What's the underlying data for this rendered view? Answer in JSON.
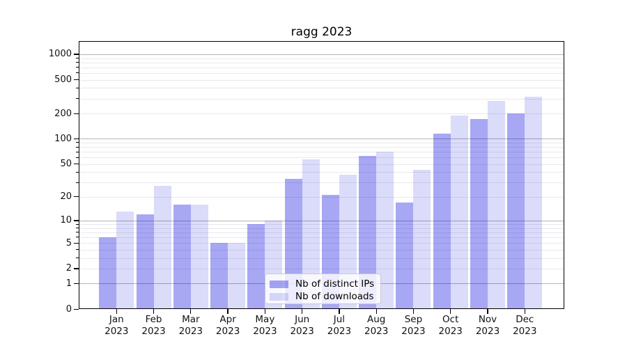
{
  "chart_data": {
    "type": "bar",
    "title": "ragg 2023",
    "categories": [
      "Jan",
      "Feb",
      "Mar",
      "Apr",
      "May",
      "Jun",
      "Jul",
      "Aug",
      "Sep",
      "Oct",
      "Nov",
      "Dec"
    ],
    "category_year": "2023",
    "series": [
      {
        "name": "Nb of distinct IPs",
        "color": "rgba(0,0,221,0.345)",
        "values": [
          6,
          12,
          16,
          5,
          9,
          33,
          21,
          63,
          17,
          116,
          172,
          200
        ]
      },
      {
        "name": "Nb of downloads",
        "color": "rgba(0,0,221,0.14)",
        "values": [
          13,
          27,
          16,
          5,
          10,
          57,
          37,
          70,
          43,
          190,
          280,
          318
        ]
      }
    ],
    "y_axis": {
      "scale": "log1p",
      "tick_labels": [
        0,
        1,
        2,
        5,
        10,
        20,
        50,
        100,
        200,
        500,
        1000
      ],
      "major_gridlines": [
        1,
        10,
        100,
        1000
      ],
      "ylim": [
        0,
        1430
      ],
      "grid": true
    },
    "xlabel": "",
    "ylabel": "",
    "legend": {
      "entries": [
        "Nb of distinct IPs",
        "Nb of downloads"
      ],
      "position": "lower-center-left"
    }
  },
  "colors": {
    "major_grid": "#b4b4b4",
    "minor_grid": "#e9e9ef",
    "spine": "#000000",
    "tick_text": "#111111",
    "legend_border": "#cccccc",
    "legend_bg": "rgba(255,255,255,0.8)"
  }
}
